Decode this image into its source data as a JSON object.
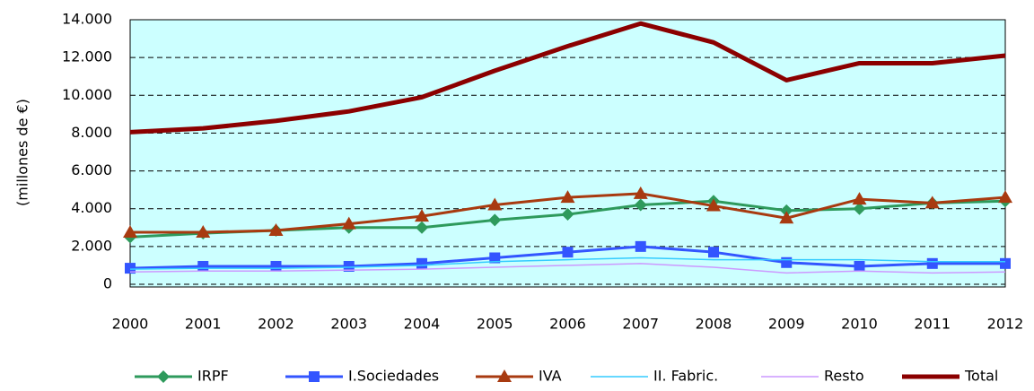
{
  "chart_data": {
    "type": "line",
    "y_label": "(millones de €)",
    "categories": [
      "2000",
      "2001",
      "2002",
      "2003",
      "2004",
      "2005",
      "2006",
      "2007",
      "2008",
      "2009",
      "2010",
      "2011",
      "2012"
    ],
    "series": [
      {
        "name": "IRPF",
        "color": "#2e9a5c",
        "marker": "diamond",
        "line_width": 3,
        "values": [
          2500,
          2700,
          2850,
          3000,
          3000,
          3400,
          3700,
          4200,
          4400,
          3900,
          4000,
          4300,
          4400
        ]
      },
      {
        "name": "I.Sociedades",
        "color": "#3355ff",
        "marker": "square",
        "line_width": 3,
        "values": [
          850,
          950,
          950,
          950,
          1100,
          1400,
          1700,
          2000,
          1700,
          1150,
          950,
          1100,
          1100
        ]
      },
      {
        "name": "IVA",
        "color": "#a83a10",
        "marker": "triangle",
        "line_width": 3,
        "values": [
          2750,
          2750,
          2850,
          3200,
          3600,
          4200,
          4600,
          4800,
          4150,
          3500,
          4500,
          4300,
          4600
        ]
      },
      {
        "name": "II. Fabric.",
        "color": "#33ccff",
        "line_width": 1.5,
        "values": [
          800,
          850,
          850,
          900,
          1000,
          1200,
          1300,
          1400,
          1300,
          1300,
          1300,
          1200,
          1200
        ]
      },
      {
        "name": "Resto",
        "color": "#cc99ff",
        "line_width": 1.5,
        "values": [
          650,
          700,
          700,
          750,
          800,
          900,
          1000,
          1100,
          900,
          600,
          700,
          600,
          650
        ]
      },
      {
        "name": "Total",
        "color": "#8b0000",
        "line_width": 5,
        "values": [
          8050,
          8250,
          8650,
          9150,
          9900,
          11300,
          12600,
          13800,
          12800,
          10800,
          11700,
          11700,
          12100
        ]
      }
    ],
    "ylim": [
      0,
      14000
    ],
    "yticks": [
      {
        "value": 0,
        "label": "0"
      },
      {
        "value": 2000,
        "label": "2.000"
      },
      {
        "value": 4000,
        "label": "4.000"
      },
      {
        "value": 6000,
        "label": "6.000"
      },
      {
        "value": 8000,
        "label": "8.000"
      },
      {
        "value": 10000,
        "label": "10.000"
      },
      {
        "value": 12000,
        "label": "12.000"
      },
      {
        "value": 14000,
        "label": "14.000"
      }
    ],
    "grid": true,
    "plot_background": "#ccffff",
    "legend": "bottom"
  }
}
